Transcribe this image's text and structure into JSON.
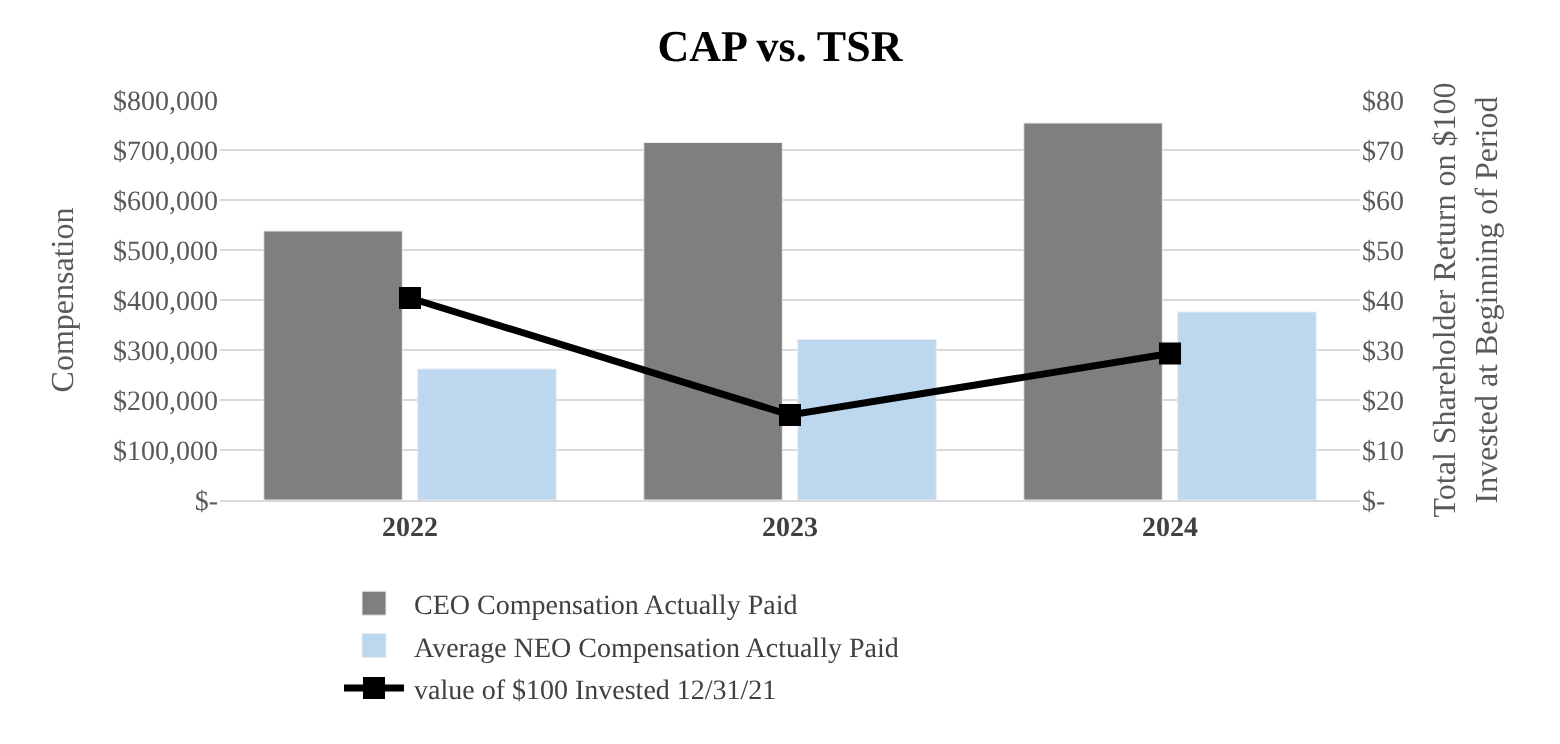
{
  "chart_data": {
    "type": "bar",
    "title": "CAP vs. TSR",
    "ylabel": "Compensation",
    "y2label": "Total Shareholder Return on $100\nInvested at Beginning of Period",
    "categories": [
      "2022",
      "2023",
      "2024"
    ],
    "series": [
      {
        "name": "CEO Compensation Actually Paid",
        "color": "#7f7f7f",
        "values": [
          538000,
          715000,
          754000
        ]
      },
      {
        "name": "Average NEO Compensation Actually Paid",
        "color": "#bdd7ee",
        "values": [
          262000,
          321000,
          376000
        ]
      },
      {
        "name": "value of $100 Invested 12/31/21",
        "type": "line",
        "axis": "y2",
        "color": "#000000",
        "marker": "square",
        "values": [
          40.4,
          17,
          29.3
        ]
      }
    ],
    "ylim": [
      0,
      800000
    ],
    "yticks": [
      {
        "value": 0,
        "label": "$-"
      },
      {
        "value": 100000,
        "label": "$100,000"
      },
      {
        "value": 200000,
        "label": "$200,000"
      },
      {
        "value": 300000,
        "label": "$300,000"
      },
      {
        "value": 400000,
        "label": "$400,000"
      },
      {
        "value": 500000,
        "label": "$500,000"
      },
      {
        "value": 600000,
        "label": "$600,000"
      },
      {
        "value": 700000,
        "label": "$700,000"
      },
      {
        "value": 800000,
        "label": "$800,000"
      }
    ],
    "y2lim": [
      0,
      80
    ],
    "y2ticks": [
      {
        "value": 0,
        "label": "$-"
      },
      {
        "value": 10,
        "label": "$10"
      },
      {
        "value": 20,
        "label": "$20"
      },
      {
        "value": 30,
        "label": "$30"
      },
      {
        "value": 40,
        "label": "$40"
      },
      {
        "value": 50,
        "label": "$50"
      },
      {
        "value": 60,
        "label": "$60"
      },
      {
        "value": 70,
        "label": "$70"
      },
      {
        "value": 80,
        "label": "$80"
      }
    ],
    "grid": "y",
    "legend": "bottom"
  }
}
